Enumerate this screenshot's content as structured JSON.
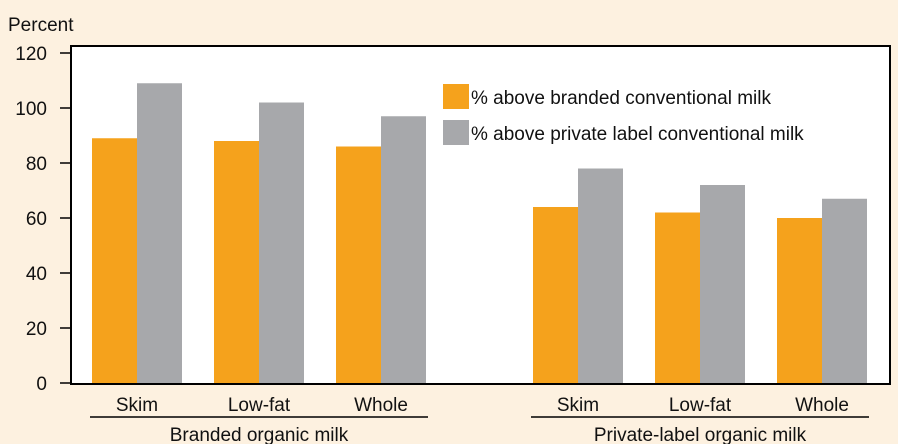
{
  "chart_data": {
    "type": "bar",
    "ylabel": "Percent",
    "ylim": [
      0,
      120
    ],
    "yticks": [
      0,
      20,
      40,
      60,
      80,
      100,
      120
    ],
    "groups": [
      {
        "label": "Branded organic milk",
        "categories": [
          "Skim",
          "Low-fat",
          "Whole"
        ]
      },
      {
        "label": "Private-label organic milk",
        "categories": [
          "Skim",
          "Low-fat",
          "Whole"
        ]
      }
    ],
    "series": [
      {
        "name": "% above branded conventional milk",
        "color": "#f5a21c",
        "values": [
          [
            89,
            88,
            86
          ],
          [
            64,
            62,
            60
          ]
        ]
      },
      {
        "name": "% above private label conventional milk",
        "color": "#a7a8ab",
        "values": [
          [
            109,
            102,
            97
          ],
          [
            78,
            72,
            67
          ]
        ]
      }
    ],
    "legend_position": "top-right",
    "grid": false
  }
}
